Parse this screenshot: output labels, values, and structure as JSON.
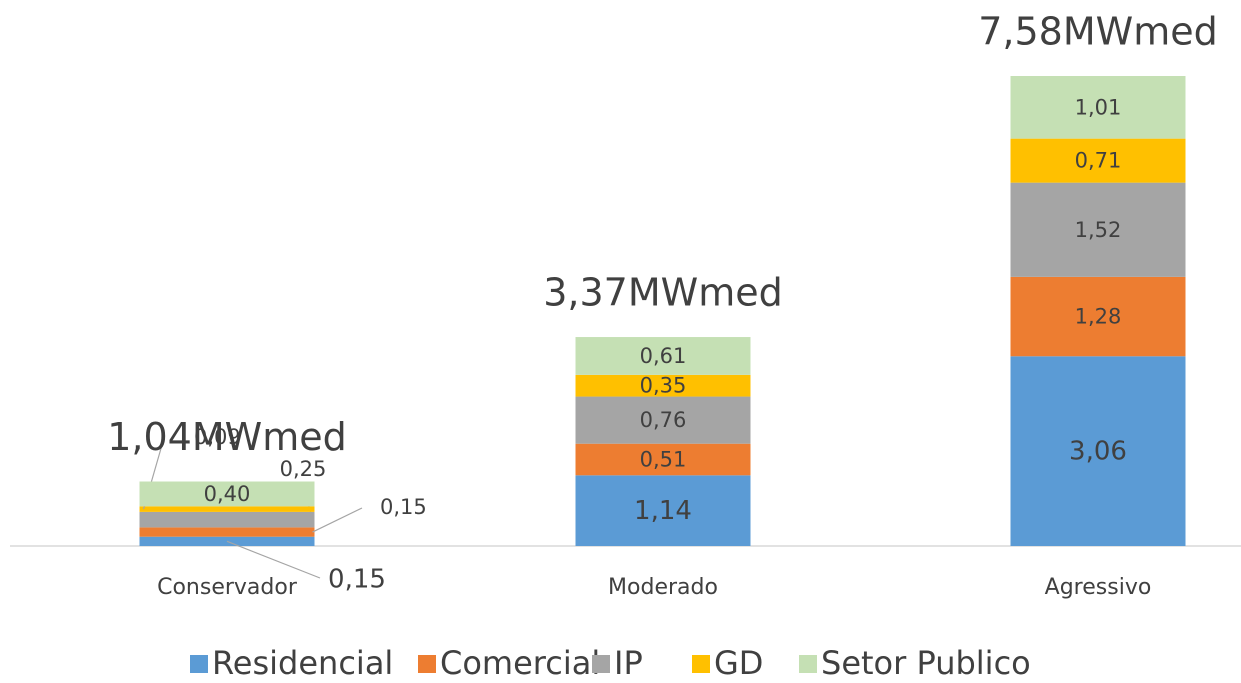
{
  "chart_data": {
    "type": "stacked_bar",
    "categories": [
      "Conservador",
      "Moderado",
      "Agressivo"
    ],
    "series": [
      {
        "name": "Residencial",
        "color": "#5b9bd5",
        "values": [
          0.15,
          1.14,
          3.06
        ],
        "value_labels": [
          "0,15",
          "1,14",
          "3,06"
        ]
      },
      {
        "name": "Comercial",
        "color": "#ed7d31",
        "values": [
          0.15,
          0.51,
          1.28
        ],
        "value_labels": [
          "0,15",
          "0,51",
          "1,28"
        ]
      },
      {
        "name": "IP",
        "color": "#a5a5a5",
        "values": [
          0.25,
          0.76,
          1.52
        ],
        "value_labels": [
          "0,25",
          "0,76",
          "1,52"
        ]
      },
      {
        "name": "GD",
        "color": "#ffc000",
        "values": [
          0.09,
          0.35,
          0.71
        ],
        "value_labels": [
          "0,09",
          "0,35",
          "0,71"
        ]
      },
      {
        "name": "Setor Publico",
        "color": "#c5e0b4",
        "values": [
          0.4,
          0.61,
          1.01
        ],
        "value_labels": [
          "0,40",
          "0,61",
          "1,01"
        ]
      }
    ],
    "totals": [
      1.04,
      3.37,
      7.58
    ],
    "total_labels": [
      "1,04MWmed",
      "3,37MWmed",
      "7,58MWmed"
    ],
    "legend": "bottom"
  }
}
